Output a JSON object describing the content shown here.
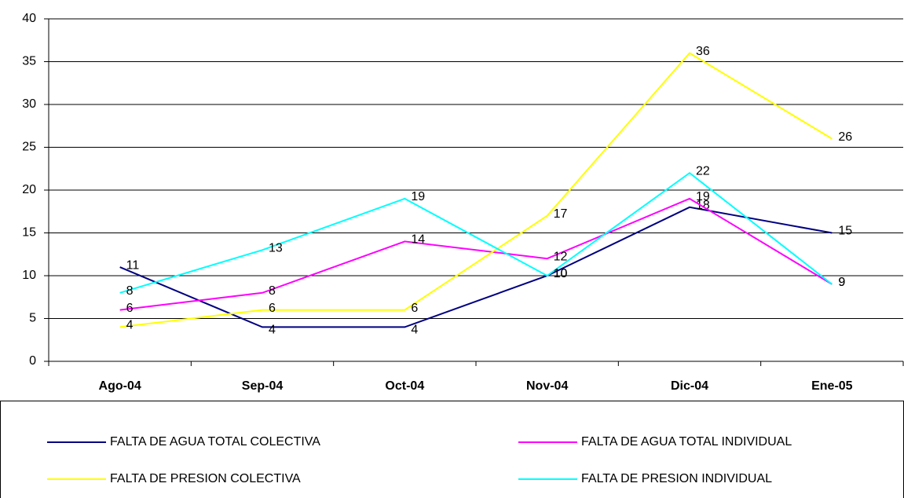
{
  "chart_data": {
    "type": "line",
    "categories": [
      "Ago-04",
      "Sep-04",
      "Oct-04",
      "Nov-04",
      "Dic-04",
      "Ene-05"
    ],
    "series": [
      {
        "name": "FALTA DE AGUA TOTAL COLECTIVA",
        "color": "#000080",
        "values": [
          11,
          4,
          4,
          10,
          18,
          15
        ]
      },
      {
        "name": "FALTA DE AGUA TOTAL INDIVIDUAL",
        "color": "#ff00ff",
        "values": [
          6,
          8,
          14,
          12,
          19,
          9
        ]
      },
      {
        "name": "FALTA DE PRESION COLECTIVA",
        "color": "#ffff00",
        "values": [
          4,
          6,
          6,
          17,
          36,
          26
        ]
      },
      {
        "name": "FALTA DE PRESION INDIVIDUAL",
        "color": "#00ffff",
        "values": [
          8,
          13,
          19,
          10,
          22,
          9
        ]
      }
    ],
    "ylim": [
      0,
      40
    ],
    "yticks": [
      0,
      5,
      10,
      15,
      20,
      25,
      30,
      35,
      40
    ],
    "grid": true
  }
}
